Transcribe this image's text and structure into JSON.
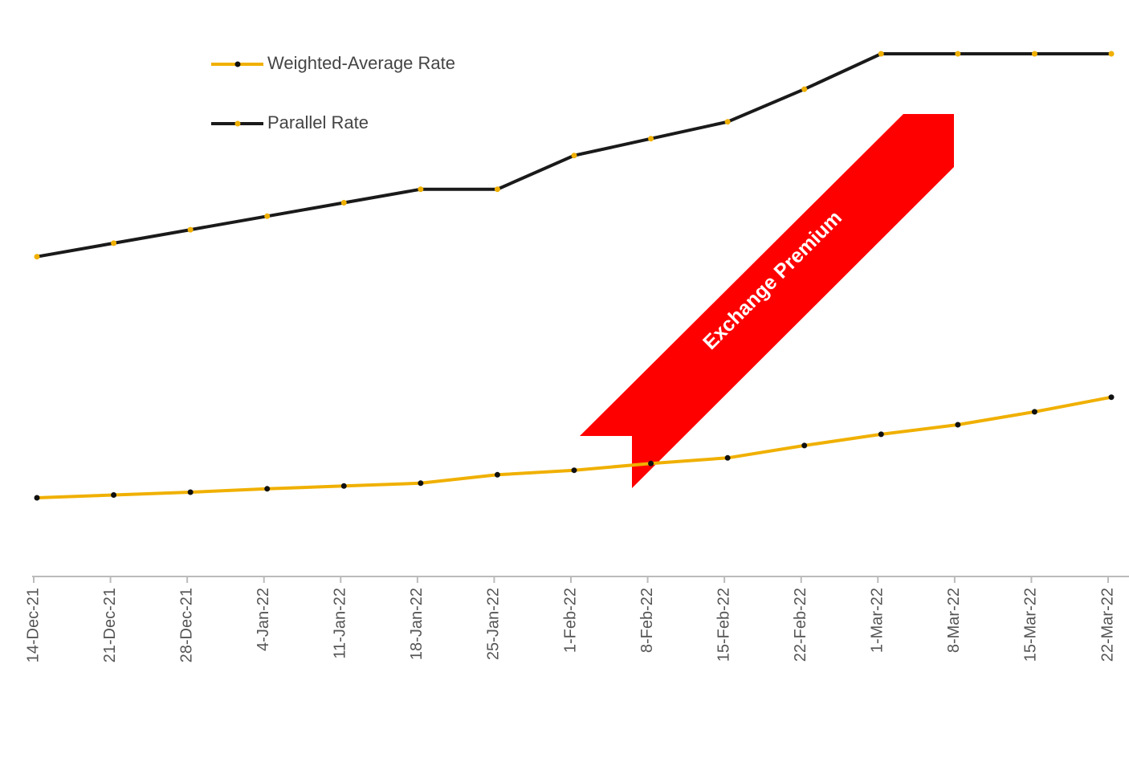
{
  "chart_data": {
    "type": "line",
    "categories": [
      "14-Dec-21",
      "21-Dec-21",
      "28-Dec-21",
      "4-Jan-22",
      "11-Jan-22",
      "18-Jan-22",
      "25-Jan-22",
      "1-Feb-22",
      "8-Feb-22",
      "15-Feb-22",
      "22-Feb-22",
      "1-Mar-22",
      "8-Mar-22",
      "15-Mar-22",
      "22-Mar-22"
    ],
    "series": [
      {
        "name": "Weighted-Average Rate",
        "color": "#f0b000",
        "marker_color": "#111111",
        "values": [
          14,
          14.5,
          15.0,
          15.6,
          16.1,
          16.6,
          18.1,
          18.9,
          20.1,
          21.1,
          23.3,
          25.3,
          27,
          29.3,
          31.9
        ]
      },
      {
        "name": "Parallel Rate",
        "color": "#1a1a1a",
        "marker_color": "#f0b000",
        "values": [
          56.9,
          59.3,
          61.7,
          64.1,
          66.5,
          68.9,
          68.9,
          74.9,
          77.9,
          80.9,
          86.7,
          93,
          93,
          93,
          93
        ]
      }
    ],
    "ylim": [
      0,
      100
    ],
    "annotation": "Exchange Premium"
  }
}
